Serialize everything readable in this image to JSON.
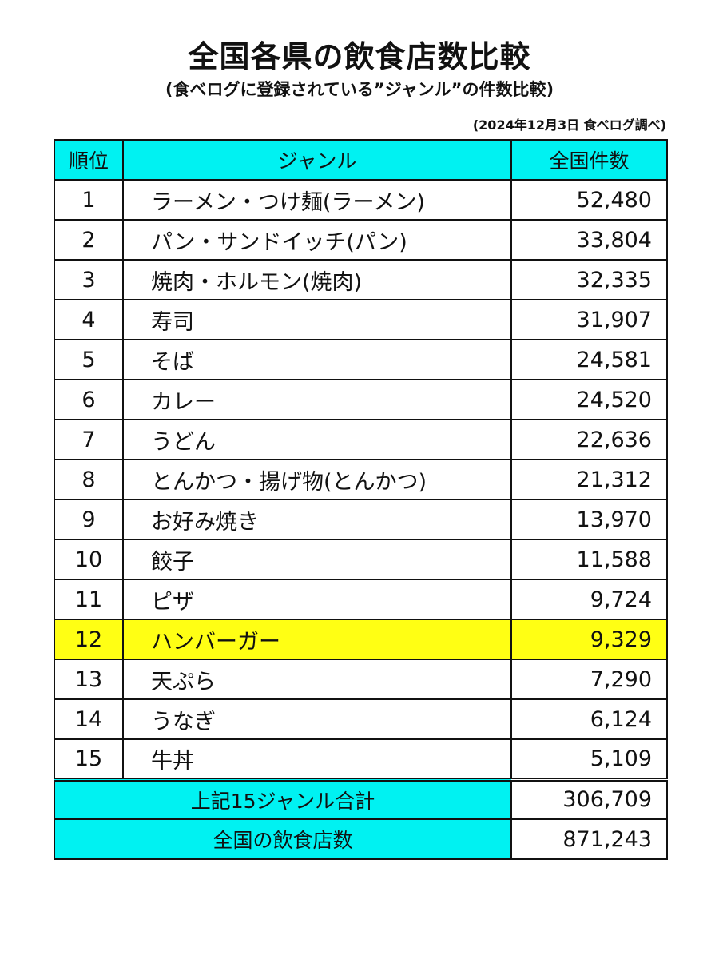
{
  "title": "全国各県の飲食店数比較",
  "subtitle": "(食べログに登録されている”ジャンル”の件数比較)",
  "source": "(2024年12月3日 食べログ調べ)",
  "table": {
    "headers": {
      "rank": "順位",
      "genre": "ジャンル",
      "count": "全国件数"
    },
    "rows": [
      {
        "rank": "1",
        "genre": "ラーメン・つけ麺(ラーメン)",
        "count": "52,480"
      },
      {
        "rank": "2",
        "genre": "パン・サンドイッチ(パン)",
        "count": "33,804"
      },
      {
        "rank": "3",
        "genre": "焼肉・ホルモン(焼肉)",
        "count": "32,335"
      },
      {
        "rank": "4",
        "genre": "寿司",
        "count": "31,907"
      },
      {
        "rank": "5",
        "genre": "そば",
        "count": "24,581"
      },
      {
        "rank": "6",
        "genre": "カレー",
        "count": "24,520"
      },
      {
        "rank": "7",
        "genre": "うどん",
        "count": "22,636"
      },
      {
        "rank": "8",
        "genre": "とんかつ・揚げ物(とんかつ)",
        "count": "21,312"
      },
      {
        "rank": "9",
        "genre": "お好み焼き",
        "count": "13,970"
      },
      {
        "rank": "10",
        "genre": "餃子",
        "count": "11,588"
      },
      {
        "rank": "11",
        "genre": "ピザ",
        "count": "9,724"
      },
      {
        "rank": "12",
        "genre": "ハンバーガー",
        "count": "9,329"
      },
      {
        "rank": "13",
        "genre": "天ぷら",
        "count": "7,290"
      },
      {
        "rank": "14",
        "genre": "うなぎ",
        "count": "6,124"
      },
      {
        "rank": "15",
        "genre": "牛丼",
        "count": "5,109"
      }
    ],
    "highlighted_rank": "12",
    "totals": [
      {
        "label": "上記15ジャンル合計",
        "count": "306,709"
      },
      {
        "label": "全国の飲食店数",
        "count": "871,243"
      }
    ]
  },
  "colors": {
    "header_bg": "#00f2f2",
    "highlight_bg": "#ffff14",
    "border": "#111111"
  }
}
